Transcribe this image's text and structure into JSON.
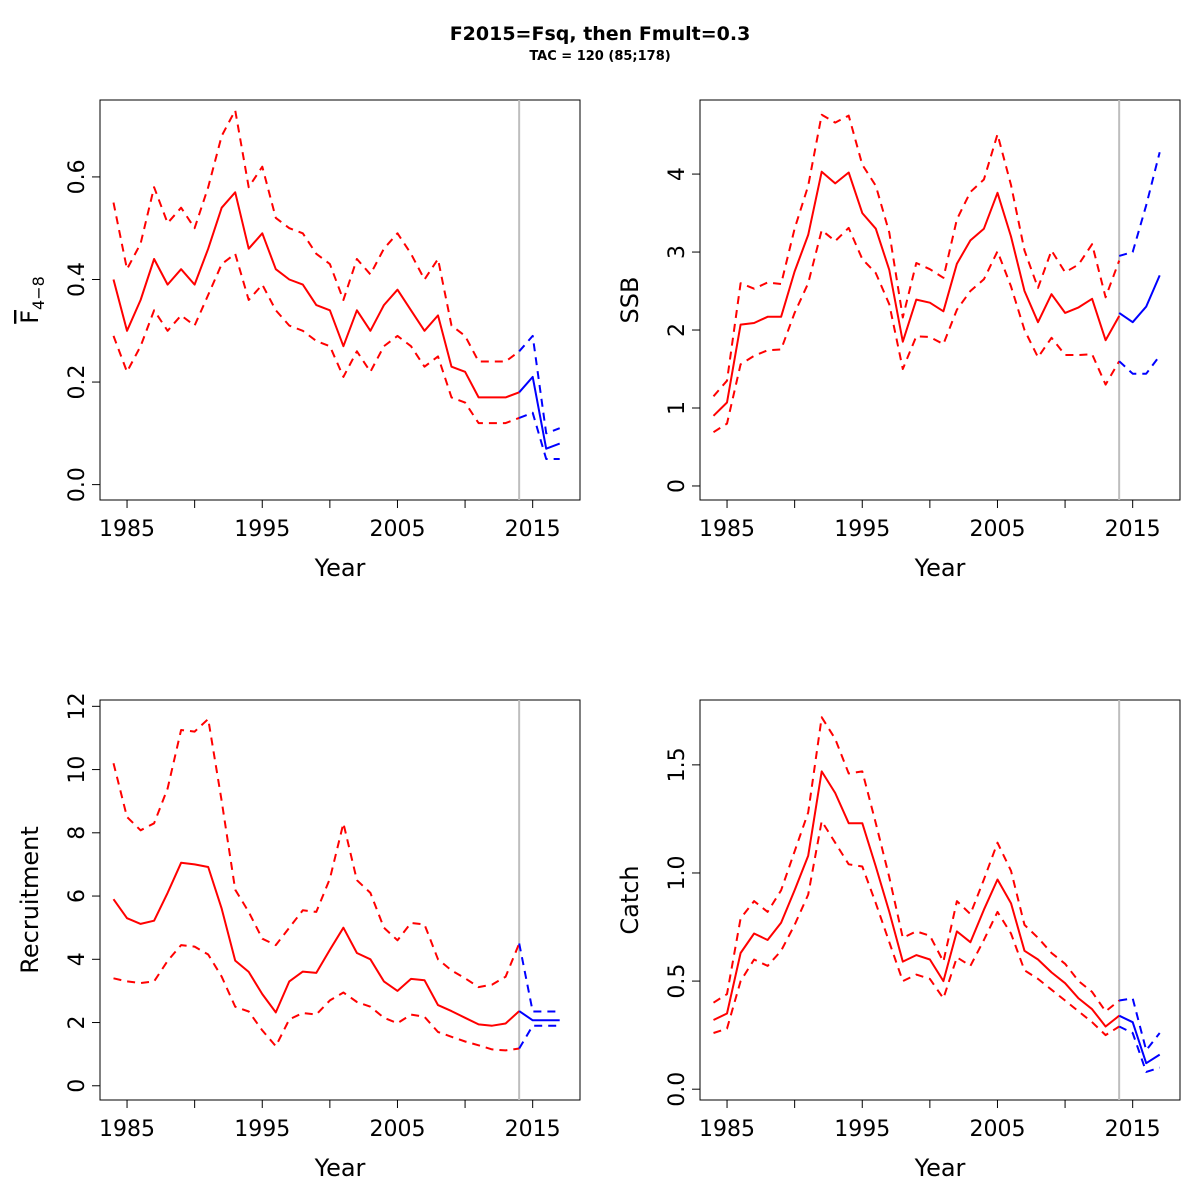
{
  "title": "F2015=Fsq, then Fmult=0.3",
  "subtitle": "TAC = 120 (85;178)",
  "colors": {
    "history": "#ff0000",
    "forecast": "#0000ff",
    "divider": "#bebebe"
  },
  "chart_data": [
    {
      "type": "line",
      "xlabel": "Year",
      "ylabel": "F",
      "ylabel_sub": "4−8",
      "ylabel_overline": true,
      "xlim": [
        1983,
        2018.5
      ],
      "ylim": [
        -0.03,
        0.75
      ],
      "xticks": [
        1985,
        1995,
        2005,
        2015
      ],
      "xticks_minor": [
        1990,
        2000,
        2010
      ],
      "yticks": [
        0.0,
        0.2,
        0.4,
        0.6
      ],
      "ytick_labels": [
        "0.0",
        "0.2",
        "0.4",
        "0.6"
      ],
      "divider_year": 2014,
      "history": {
        "x": [
          1984,
          1985,
          1986,
          1987,
          1988,
          1989,
          1990,
          1991,
          1992,
          1993,
          1994,
          1995,
          1996,
          1997,
          1998,
          1999,
          2000,
          2001,
          2002,
          2003,
          2004,
          2005,
          2006,
          2007,
          2008,
          2009,
          2010,
          2011,
          2012,
          2013,
          2014
        ],
        "median": [
          0.4,
          0.3,
          0.36,
          0.44,
          0.39,
          0.42,
          0.39,
          0.46,
          0.54,
          0.57,
          0.46,
          0.49,
          0.42,
          0.4,
          0.39,
          0.35,
          0.34,
          0.27,
          0.34,
          0.3,
          0.35,
          0.38,
          0.34,
          0.3,
          0.33,
          0.23,
          0.22,
          0.17,
          0.17,
          0.17,
          0.18
        ],
        "upper": [
          0.55,
          0.42,
          0.47,
          0.58,
          0.51,
          0.54,
          0.5,
          0.58,
          0.68,
          0.73,
          0.58,
          0.62,
          0.52,
          0.5,
          0.49,
          0.45,
          0.43,
          0.36,
          0.44,
          0.41,
          0.46,
          0.49,
          0.45,
          0.4,
          0.44,
          0.31,
          0.29,
          0.24,
          0.24,
          0.24,
          0.26
        ],
        "lower": [
          0.29,
          0.22,
          0.27,
          0.34,
          0.3,
          0.33,
          0.31,
          0.37,
          0.43,
          0.45,
          0.36,
          0.39,
          0.34,
          0.31,
          0.3,
          0.28,
          0.27,
          0.21,
          0.26,
          0.22,
          0.27,
          0.29,
          0.27,
          0.23,
          0.25,
          0.17,
          0.16,
          0.12,
          0.12,
          0.12,
          0.13
        ]
      },
      "forecast": {
        "x": [
          2014,
          2015,
          2016,
          2017
        ],
        "median": [
          0.18,
          0.21,
          0.07,
          0.08
        ],
        "upper": [
          0.26,
          0.29,
          0.1,
          0.11
        ],
        "lower": [
          0.13,
          0.14,
          0.05,
          0.05
        ]
      }
    },
    {
      "type": "line",
      "xlabel": "Year",
      "ylabel": "SSB",
      "xlim": [
        1983,
        2018.5
      ],
      "ylim": [
        -0.18,
        4.95
      ],
      "xticks": [
        1985,
        1995,
        2005,
        2015
      ],
      "xticks_minor": [
        1990,
        2000,
        2010
      ],
      "yticks": [
        0,
        1,
        2,
        3,
        4
      ],
      "ytick_labels": [
        "0",
        "1",
        "2",
        "3",
        "4"
      ],
      "divider_year": 2014,
      "history": {
        "x": [
          1984,
          1985,
          1986,
          1987,
          1988,
          1989,
          1990,
          1991,
          1992,
          1993,
          1994,
          1995,
          1996,
          1997,
          1998,
          1999,
          2000,
          2001,
          2002,
          2003,
          2004,
          2005,
          2006,
          2007,
          2008,
          2009,
          2010,
          2011,
          2012,
          2013,
          2014
        ],
        "median": [
          0.9,
          1.07,
          2.07,
          2.09,
          2.17,
          2.17,
          2.75,
          3.22,
          4.03,
          3.88,
          4.02,
          3.5,
          3.3,
          2.77,
          1.85,
          2.39,
          2.35,
          2.24,
          2.85,
          3.15,
          3.3,
          3.76,
          3.2,
          2.5,
          2.1,
          2.46,
          2.22,
          2.29,
          2.4,
          1.87,
          2.18
        ],
        "upper": [
          1.15,
          1.35,
          2.6,
          2.53,
          2.61,
          2.59,
          3.3,
          3.85,
          4.76,
          4.66,
          4.75,
          4.12,
          3.85,
          3.25,
          2.16,
          2.86,
          2.78,
          2.67,
          3.42,
          3.77,
          3.93,
          4.51,
          3.86,
          3.02,
          2.54,
          3.02,
          2.74,
          2.84,
          3.1,
          2.42,
          2.89
        ],
        "lower": [
          0.69,
          0.8,
          1.56,
          1.67,
          1.74,
          1.75,
          2.22,
          2.6,
          3.28,
          3.14,
          3.31,
          2.91,
          2.73,
          2.33,
          1.5,
          1.92,
          1.91,
          1.82,
          2.26,
          2.5,
          2.65,
          3.01,
          2.56,
          2.0,
          1.65,
          1.9,
          1.68,
          1.68,
          1.69,
          1.3,
          1.6
        ]
      },
      "forecast": {
        "x": [
          2014,
          2015,
          2016,
          2017
        ],
        "median": [
          2.22,
          2.1,
          2.3,
          2.7
        ],
        "upper": [
          2.95,
          3.0,
          3.6,
          4.28
        ],
        "lower": [
          1.6,
          1.44,
          1.44,
          1.67
        ]
      }
    },
    {
      "type": "line",
      "xlabel": "Year",
      "ylabel": "Recruitment",
      "xlim": [
        1983,
        2018.5
      ],
      "ylim": [
        -0.45,
        12.2
      ],
      "xticks": [
        1985,
        1995,
        2005,
        2015
      ],
      "xticks_minor": [
        1990,
        2000,
        2010
      ],
      "yticks": [
        0,
        2,
        4,
        6,
        8,
        10,
        12
      ],
      "ytick_labels": [
        "0",
        "2",
        "4",
        "6",
        "8",
        "10",
        "12"
      ],
      "divider_year": 2014,
      "history": {
        "x": [
          1984,
          1985,
          1986,
          1987,
          1988,
          1989,
          1990,
          1991,
          1992,
          1993,
          1994,
          1995,
          1996,
          1997,
          1998,
          1999,
          2000,
          2001,
          2002,
          2003,
          2004,
          2005,
          2006,
          2007,
          2008,
          2009,
          2010,
          2011,
          2012,
          2013,
          2014
        ],
        "median": [
          5.9,
          5.3,
          5.12,
          5.22,
          6.1,
          7.05,
          7.0,
          6.92,
          5.6,
          3.96,
          3.6,
          2.9,
          2.32,
          3.3,
          3.61,
          3.57,
          4.3,
          5.0,
          4.2,
          4.0,
          3.3,
          3.0,
          3.38,
          3.34,
          2.55,
          2.36,
          2.15,
          1.94,
          1.9,
          1.97,
          2.36
        ],
        "upper": [
          10.2,
          8.5,
          8.08,
          8.3,
          9.4,
          11.25,
          11.2,
          11.6,
          9.0,
          6.2,
          5.5,
          4.65,
          4.45,
          5.0,
          5.55,
          5.5,
          6.55,
          8.3,
          6.5,
          6.1,
          5.0,
          4.6,
          5.15,
          5.1,
          4.0,
          3.65,
          3.4,
          3.12,
          3.2,
          3.45,
          4.5
        ],
        "lower": [
          3.4,
          3.3,
          3.25,
          3.3,
          3.95,
          4.45,
          4.4,
          4.15,
          3.45,
          2.5,
          2.35,
          1.75,
          1.25,
          2.1,
          2.3,
          2.25,
          2.7,
          2.95,
          2.65,
          2.5,
          2.15,
          1.98,
          2.25,
          2.18,
          1.7,
          1.55,
          1.4,
          1.28,
          1.15,
          1.12,
          1.18
        ]
      },
      "forecast": {
        "x": [
          2014,
          2015,
          2016,
          2017
        ],
        "median": [
          2.36,
          2.07,
          2.07,
          2.07
        ],
        "upper": [
          4.5,
          2.35,
          2.35,
          2.35
        ],
        "lower": [
          1.18,
          1.9,
          1.9,
          1.9
        ]
      }
    },
    {
      "type": "line",
      "xlabel": "Year",
      "ylabel": "Catch",
      "xlim": [
        1983,
        2018.5
      ],
      "ylim": [
        -0.05,
        1.8
      ],
      "xticks": [
        1985,
        1995,
        2005,
        2015
      ],
      "xticks_minor": [
        1990,
        2000,
        2010
      ],
      "yticks": [
        0.0,
        0.5,
        1.0,
        1.5
      ],
      "ytick_labels": [
        "0.0",
        "0.5",
        "1.0",
        "1.5"
      ],
      "divider_year": 2014,
      "history": {
        "x": [
          1984,
          1985,
          1986,
          1987,
          1988,
          1989,
          1990,
          1991,
          1992,
          1993,
          1994,
          1995,
          1996,
          1997,
          1998,
          1999,
          2000,
          2001,
          2002,
          2003,
          2004,
          2005,
          2006,
          2007,
          2008,
          2009,
          2010,
          2011,
          2012,
          2013,
          2014
        ],
        "median": [
          0.32,
          0.35,
          0.63,
          0.72,
          0.69,
          0.77,
          0.92,
          1.08,
          1.47,
          1.37,
          1.23,
          1.23,
          1.03,
          0.82,
          0.59,
          0.62,
          0.6,
          0.5,
          0.73,
          0.68,
          0.83,
          0.97,
          0.86,
          0.64,
          0.6,
          0.54,
          0.49,
          0.42,
          0.37,
          0.29,
          0.34
        ],
        "upper": [
          0.4,
          0.44,
          0.79,
          0.87,
          0.82,
          0.92,
          1.1,
          1.28,
          1.72,
          1.62,
          1.46,
          1.47,
          1.23,
          0.98,
          0.7,
          0.73,
          0.71,
          0.59,
          0.87,
          0.81,
          0.97,
          1.14,
          1.01,
          0.76,
          0.7,
          0.63,
          0.58,
          0.5,
          0.45,
          0.36,
          0.41
        ],
        "lower": [
          0.26,
          0.28,
          0.5,
          0.6,
          0.57,
          0.64,
          0.76,
          0.9,
          1.24,
          1.14,
          1.04,
          1.03,
          0.86,
          0.68,
          0.5,
          0.53,
          0.51,
          0.42,
          0.61,
          0.57,
          0.69,
          0.82,
          0.72,
          0.55,
          0.51,
          0.46,
          0.41,
          0.36,
          0.31,
          0.25,
          0.29
        ]
      },
      "forecast": {
        "x": [
          2014,
          2015,
          2016,
          2017
        ],
        "median": [
          0.34,
          0.31,
          0.12,
          0.16
        ],
        "upper": [
          0.41,
          0.42,
          0.18,
          0.26
        ],
        "lower": [
          0.29,
          0.26,
          0.08,
          0.1
        ]
      }
    }
  ]
}
